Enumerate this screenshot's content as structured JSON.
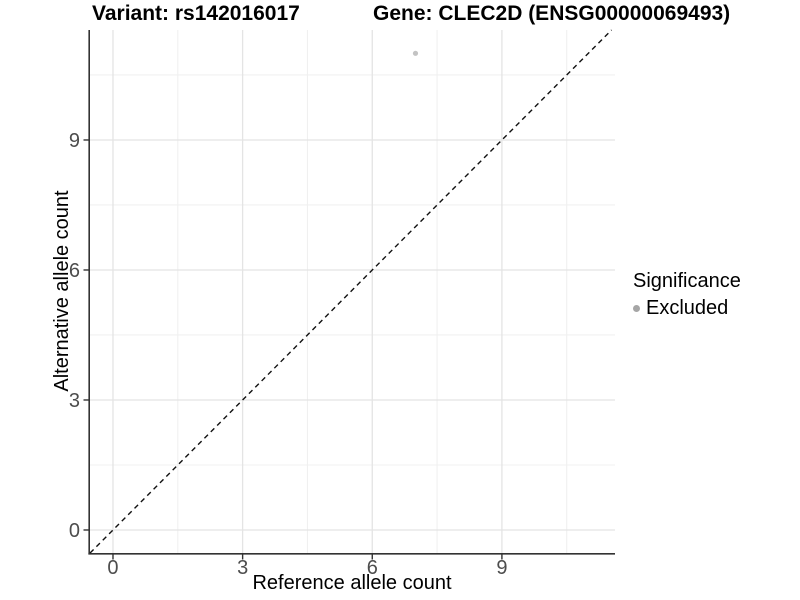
{
  "titles": {
    "left": "Variant: rs142016017",
    "right": "Gene: CLEC2D (ENSG00000069493)"
  },
  "chart_data": {
    "type": "scatter",
    "xlabel": "Reference allele count",
    "ylabel": "Alternative allele count",
    "x_ticks": [
      0,
      3,
      6,
      9
    ],
    "y_ticks": [
      0,
      3,
      6,
      9
    ],
    "x_minor_ticks": [
      1.5,
      4.5,
      7.5,
      10.5
    ],
    "y_minor_ticks": [
      1.5,
      4.5,
      7.5,
      10.5
    ],
    "xlim": [
      -0.532,
      11.617
    ],
    "ylim": [
      -0.531,
      11.538
    ],
    "grid": true,
    "reference_line": {
      "kind": "abline",
      "slope": 1,
      "intercept": 0,
      "style": "dashed",
      "color": "#111111"
    },
    "series": [
      {
        "name": "Excluded",
        "point_color": "#c3c3c3",
        "point_radius": 2.6,
        "points": [
          {
            "x": 7,
            "y": 11
          }
        ]
      }
    ],
    "legend": {
      "position": "right",
      "title": "Significance",
      "items": [
        {
          "label": "Excluded",
          "color": "#a6a6a6"
        }
      ]
    },
    "style": {
      "major_grid_color": "#e4e4e4",
      "minor_grid_color": "#f0f0f0",
      "axis_line_color": "#333333",
      "tick_color": "#333333",
      "tick_label_color": "#4d4d4d"
    }
  }
}
